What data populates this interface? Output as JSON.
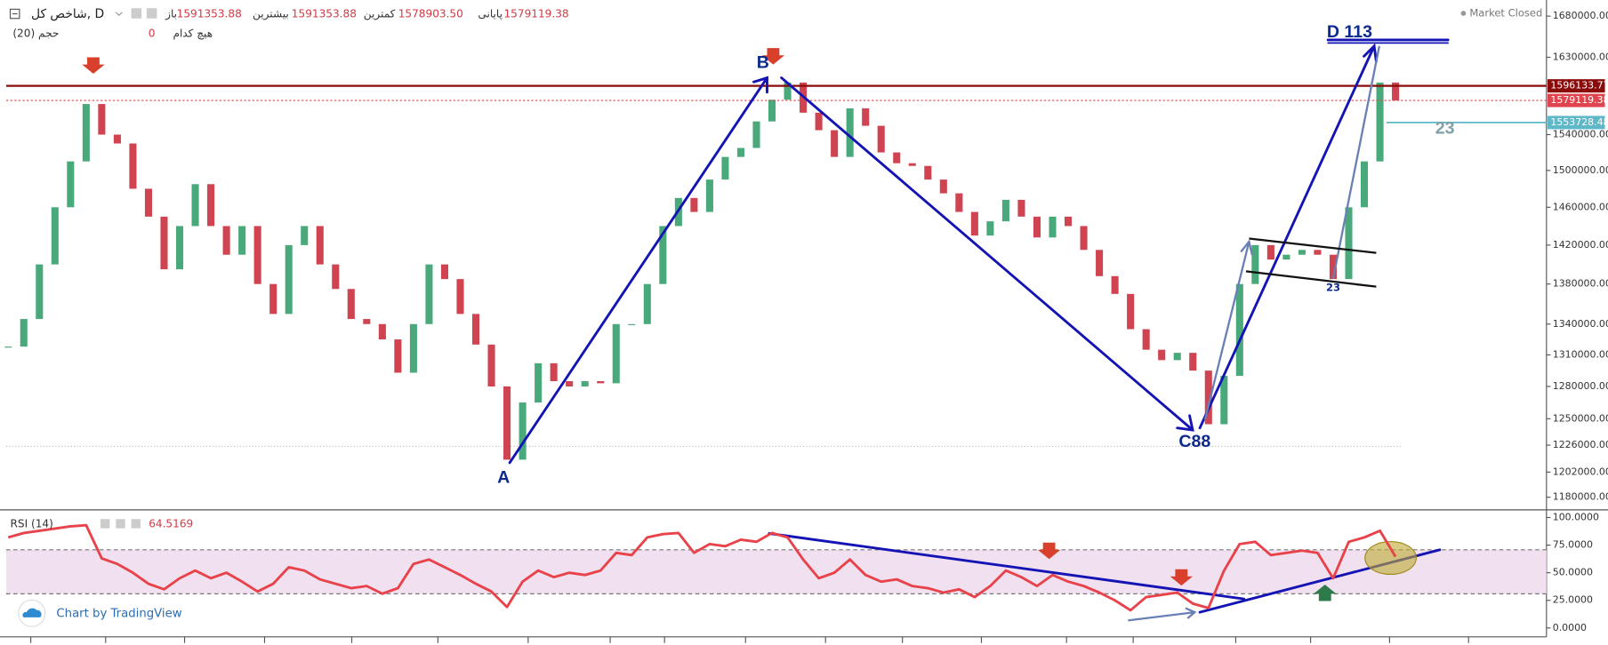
{
  "chart_data": [
    {
      "type": "candlestick",
      "title": "شاخص کل, D",
      "legend": [
        {
          "label": "باز",
          "value": "1591353.88"
        },
        {
          "label": "بیشترین",
          "value": "1591353.88"
        },
        {
          "label": "کمترین",
          "value": "1578903.50"
        },
        {
          "label": "پایانی",
          "value": "1579119.38"
        }
      ],
      "volume": {
        "label": "حجم (20)",
        "name": "هیچ کدام",
        "value": 0
      },
      "status": "Market Closed",
      "annotations": [
        "A",
        "B",
        "C88",
        "D 113",
        "23",
        "23"
      ],
      "log_scale": true,
      "up_color": "#4aa97a",
      "down_color": "#cf4450",
      "ylim": [
        1170000,
        1700000
      ],
      "yticks": [
        {
          "value": 1680000,
          "label": "1680000.00"
        },
        {
          "value": 1630000,
          "label": "1630000.00"
        },
        {
          "value": 1540000,
          "label": "1540000.00"
        },
        {
          "value": 1500000,
          "label": "1500000.00"
        },
        {
          "value": 1460000,
          "label": "1460000.00"
        },
        {
          "value": 1420000,
          "label": "1420000.00"
        },
        {
          "value": 1380000,
          "label": "1380000.00"
        },
        {
          "value": 1340000,
          "label": "1340000.00"
        },
        {
          "value": 1310000,
          "label": "1310000.00"
        },
        {
          "value": 1280000,
          "label": "1280000.00"
        },
        {
          "value": 1250000,
          "label": "1250000.00"
        },
        {
          "value": 1226000,
          "label": "1226000.00"
        },
        {
          "value": 1202000,
          "label": "1202000.00"
        },
        {
          "value": 1180000,
          "label": "1180000.00"
        }
      ],
      "price_lines": [
        {
          "value": 1596133.77,
          "color": "#8b0a0a"
        },
        {
          "value": 1579119.38,
          "color": "#e0454f"
        },
        {
          "value": 1553728.48,
          "color": "#5fb8c8"
        }
      ],
      "values": [
        1318000,
        1345000,
        1400000,
        1460000,
        1510000,
        1575000,
        1540000,
        1530000,
        1480000,
        1450000,
        1395000,
        1440000,
        1485000,
        1440000,
        1410000,
        1440000,
        1380000,
        1350000,
        1420000,
        1440000,
        1400000,
        1375000,
        1345000,
        1340000,
        1325000,
        1293000,
        1340000,
        1400000,
        1385000,
        1350000,
        1320000,
        1280000,
        1213000,
        1265000,
        1302000,
        1285000,
        1280000,
        1285000,
        1283000,
        1340000,
        1340000,
        1380000,
        1440000,
        1470000,
        1455000,
        1490000,
        1515000,
        1525000,
        1555000,
        1580000,
        1600000,
        1565000,
        1545000,
        1515000,
        1570000,
        1550000,
        1520000,
        1508000,
        1505000,
        1490000,
        1475000,
        1455000,
        1430000,
        1445000,
        1468000,
        1450000,
        1428000,
        1450000,
        1440000,
        1415000,
        1388000,
        1370000,
        1335000,
        1315000,
        1305000,
        1312000,
        1295000,
        1245000,
        1290000,
        1380000,
        1420000,
        1405000,
        1410000,
        1415000,
        1410000,
        1385000,
        1460000,
        1510000,
        1600000,
        1579119
      ]
    },
    {
      "type": "line",
      "title": "RSI (14)",
      "color": "#e8424a",
      "ylim": [
        -8,
        106
      ],
      "yticks": [
        {
          "value": 100,
          "label": "100.0000"
        },
        {
          "value": 75,
          "label": "75.0000"
        },
        {
          "value": 50,
          "label": "50.0000"
        },
        {
          "value": 25,
          "label": "25.0000"
        },
        {
          "value": 0,
          "label": "0.0000"
        }
      ],
      "values": [
        82,
        86,
        88,
        90,
        92,
        93,
        63,
        58,
        50,
        40,
        35,
        45,
        52,
        45,
        50,
        42,
        33,
        40,
        55,
        52,
        44,
        40,
        36,
        38,
        31,
        36,
        58,
        62,
        55,
        48,
        40,
        33,
        19,
        42,
        52,
        46,
        50,
        48,
        52,
        68,
        66,
        82,
        85,
        86,
        68,
        76,
        74,
        80,
        78,
        86,
        82,
        62,
        45,
        50,
        62,
        48,
        42,
        44,
        38,
        36,
        32,
        35,
        28,
        38,
        52,
        46,
        38,
        48,
        42,
        38,
        32,
        25,
        16,
        28,
        30,
        32,
        22,
        18,
        52,
        76,
        78,
        66,
        68,
        70,
        68,
        45,
        78,
        82,
        88,
        64.5169
      ]
    }
  ],
  "footer": {
    "credit": "Chart by TradingView"
  }
}
